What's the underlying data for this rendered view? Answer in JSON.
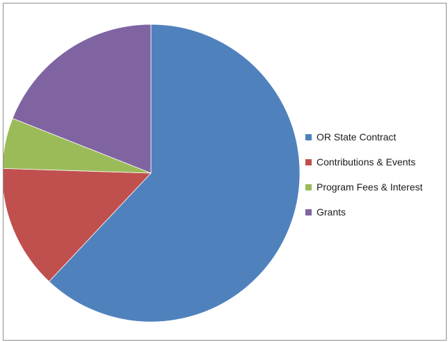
{
  "chart_data": {
    "type": "pie",
    "title": "",
    "start_angle_deg": 0,
    "direction": "clockwise",
    "legend_position": "right",
    "slices": [
      {
        "label": "OR State Contract",
        "value": 62,
        "color": "#4f81bd"
      },
      {
        "label": "Contributions & Events",
        "value": 13.5,
        "color": "#c0504d"
      },
      {
        "label": "Program Fees & Interest",
        "value": 5.5,
        "color": "#9bbb59"
      },
      {
        "label": "Grants",
        "value": 19,
        "color": "#8064a2"
      }
    ]
  }
}
